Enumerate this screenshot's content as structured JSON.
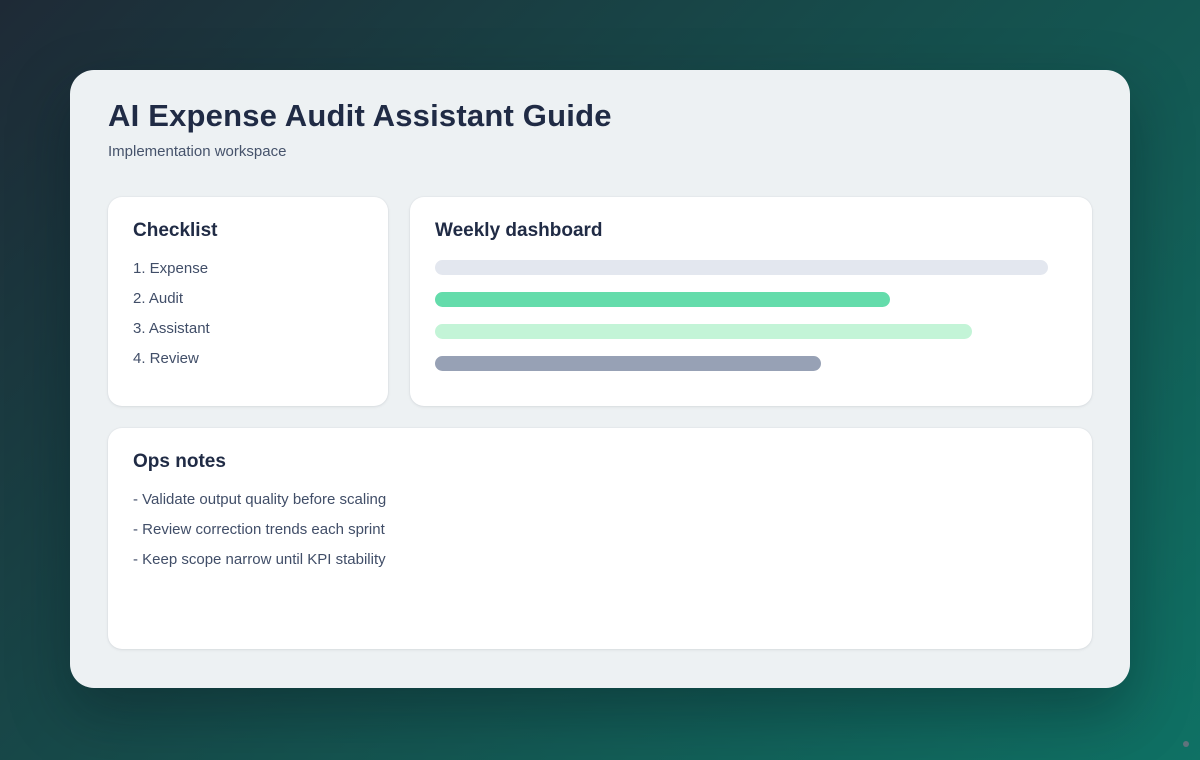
{
  "header": {
    "title": "AI Expense Audit Assistant Guide",
    "subtitle": "Implementation workspace"
  },
  "checklist": {
    "title": "Checklist",
    "items": [
      "1. Expense",
      "2. Audit",
      "3. Assistant",
      "4. Review"
    ]
  },
  "dashboard": {
    "title": "Weekly dashboard",
    "bars": [
      {
        "name": "track-bar",
        "color": "#e3e7ef",
        "width_pct": 97,
        "style": "width:97%;background:#e3e7ef"
      },
      {
        "name": "green-bar",
        "color": "#64dcab",
        "width_pct": 72,
        "style": "width:72%;background:#64dcab"
      },
      {
        "name": "mint-bar",
        "color": "#c3f4d7",
        "width_pct": 85,
        "style": "width:85%;background:#c3f4d7"
      },
      {
        "name": "slate-bar",
        "color": "#97a1b5",
        "width_pct": 61,
        "style": "width:61%;background:#97a1b5"
      }
    ]
  },
  "ops_notes": {
    "title": "Ops notes",
    "items": [
      "- Validate output quality before scaling",
      "- Review correction trends each sprint",
      "- Keep scope narrow until KPI stability"
    ]
  },
  "theme": {
    "background_gradient_start": "#1e2a36",
    "background_gradient_mid": "#15514e",
    "background_gradient_end": "#0f7164",
    "panel_background": "#edf1f3",
    "card_background": "#ffffff",
    "heading_color": "#202b45",
    "body_text_color": "#414e68"
  }
}
